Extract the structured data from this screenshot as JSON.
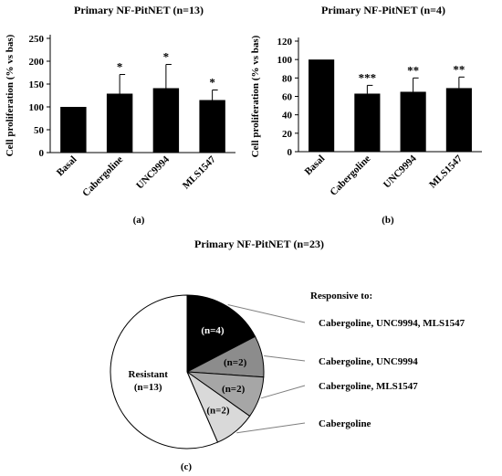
{
  "chart_data": [
    {
      "type": "bar",
      "title": "Primary NF-PitNET (n=13)",
      "ylabel": "Cell proliferation (% vs bas)",
      "panel": "(a)",
      "categories": [
        "Basal",
        "Cabergoline",
        "UNC9994",
        "MLS1547"
      ],
      "values": [
        100,
        129,
        141,
        115
      ],
      "errors": [
        0,
        42,
        52,
        22
      ],
      "significance": [
        "",
        "*",
        "*",
        "*"
      ],
      "ylim": [
        0,
        250
      ],
      "yticks": [
        "0",
        "50",
        "100",
        "150",
        "200",
        "250"
      ],
      "colors": {
        "bar": "#000000"
      }
    },
    {
      "type": "bar",
      "title": "Primary NF-PitNET (n=4)",
      "ylabel": "Cell proliferation (% vs bas)",
      "panel": "(b)",
      "categories": [
        "Basal",
        "Cabergoline",
        "UNC9994",
        "MLS1547"
      ],
      "values": [
        100,
        63,
        65,
        69
      ],
      "errors": [
        0,
        9,
        15,
        12
      ],
      "significance": [
        "",
        "***",
        "**",
        "**"
      ],
      "ylim": [
        0,
        120
      ],
      "yticks": [
        "0",
        "20",
        "40",
        "60",
        "80",
        "100",
        "120"
      ],
      "colors": {
        "bar": "#000000"
      }
    },
    {
      "type": "pie",
      "title": "Primary NF-PitNET (n=23)",
      "panel": "(c)",
      "legend_title": "Responsive to:",
      "slices": [
        {
          "label": "(n=4)",
          "value": 4,
          "color": "#000000",
          "legend": "Cabergoline, UNC9994, MLS1547"
        },
        {
          "label": "(n=2)",
          "value": 2,
          "color": "#8c8c8c",
          "legend": "Cabergoline, UNC9994"
        },
        {
          "label": "(n=2)",
          "value": 2,
          "color": "#a6a6a6",
          "legend": "Cabergoline, MLS1547"
        },
        {
          "label": "(n=2)",
          "value": 2,
          "color": "#d9d9d9",
          "legend": "Cabergoline"
        },
        {
          "label": "Resistant\n(n=13)",
          "value": 13,
          "color": "#ffffff",
          "legend": ""
        }
      ]
    }
  ]
}
